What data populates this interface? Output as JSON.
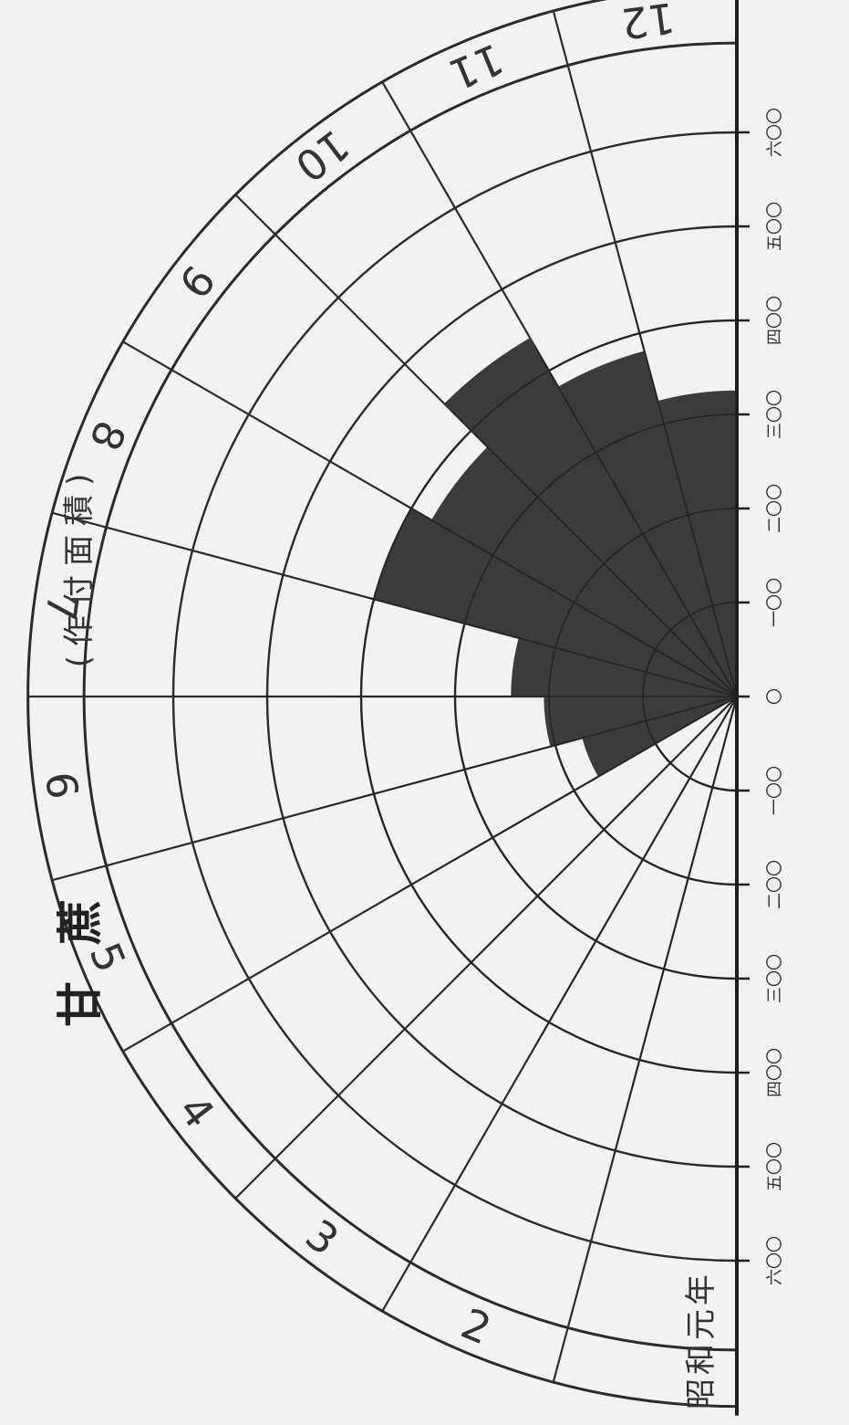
{
  "chart_data": {
    "type": "polar-bar",
    "title_main": "甘蔗",
    "title_sub": "(作付面積)",
    "era_label": "昭和元年",
    "categories": [
      "1",
      "2",
      "3",
      "4",
      "5",
      "6",
      "7",
      "8",
      "9",
      "10",
      "11",
      "12"
    ],
    "category_labels": [
      "",
      "2",
      "3",
      "4",
      "5",
      "6",
      "7",
      "8",
      "9",
      "10",
      "11",
      "12"
    ],
    "values": [
      0,
      0,
      0,
      0,
      1.7,
      2.05,
      2.4,
      4.0,
      3.75,
      4.4,
      3.8,
      3.25
    ],
    "radial_ticks": [
      "一〇〇",
      "二〇〇",
      "三〇〇",
      "四〇〇",
      "五〇〇",
      "六〇〇",
      "六〇〇",
      "五〇〇",
      "四〇〇",
      "三〇〇",
      "二〇〇",
      "一〇〇",
      "〇",
      "一〇〇",
      "二〇〇",
      "三〇〇",
      "四〇〇",
      "五〇〇",
      "六〇〇"
    ],
    "radial_ticks_ordered": [
      "六〇〇",
      "五〇〇",
      "四〇〇",
      "三〇〇",
      "二〇〇",
      "一〇〇",
      "〇",
      "一〇〇",
      "二〇〇",
      "三〇〇",
      "四〇〇",
      "五〇〇",
      "六〇〇"
    ],
    "rlim": [
      0,
      600
    ],
    "grid": true,
    "colors": {
      "fill": "#3b3b3b",
      "line": "#2b2b2b",
      "background": "#f2f2ef"
    }
  }
}
